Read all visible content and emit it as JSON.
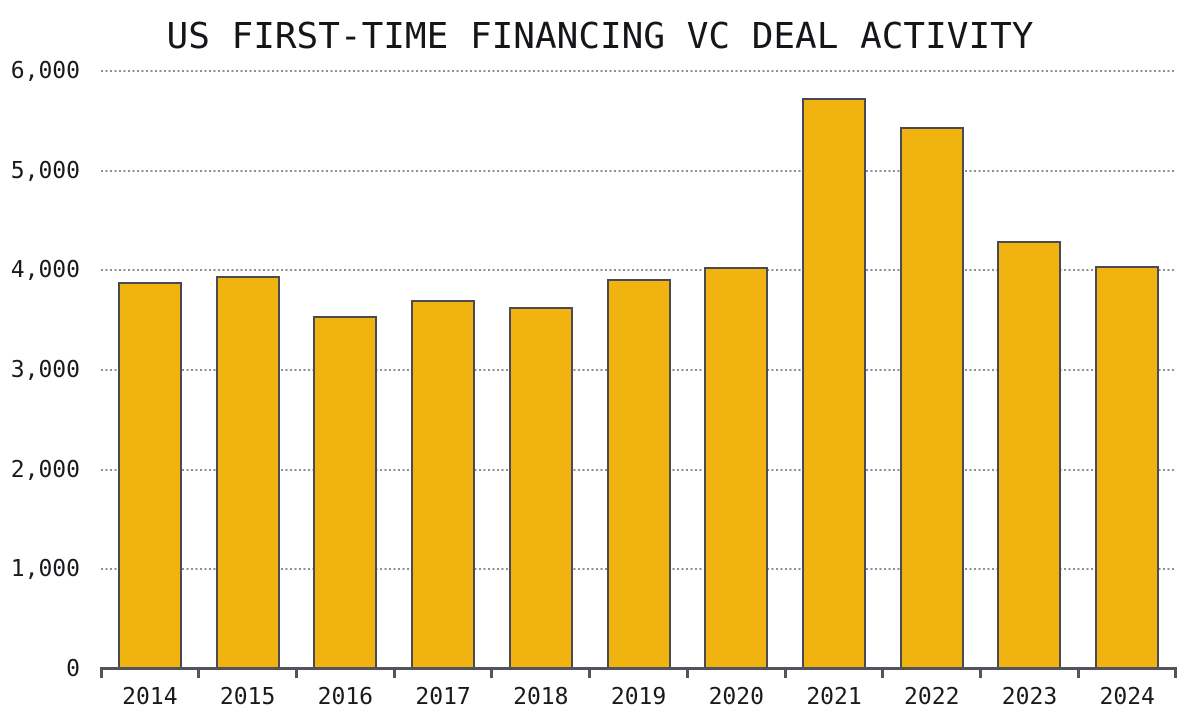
{
  "title": "US FIRST-TIME FINANCING VC DEAL ACTIVITY",
  "colors": {
    "background": "#ffffff",
    "bar_fill": "#f0b310",
    "bar_stroke": "#4a4a54",
    "axis": "#53535c",
    "gridline": "#8e8e99",
    "text": "#1a1a1e"
  },
  "chart_data": {
    "type": "bar",
    "title": "US FIRST-TIME FINANCING VC DEAL ACTIVITY",
    "categories": [
      "2014",
      "2015",
      "2016",
      "2017",
      "2018",
      "2019",
      "2020",
      "2021",
      "2022",
      "2023",
      "2024"
    ],
    "values": [
      3880,
      3940,
      3540,
      3700,
      3630,
      3910,
      4030,
      5730,
      5440,
      4290,
      4045
    ],
    "xlabel": "",
    "ylabel": "",
    "ylim": [
      0,
      6000
    ],
    "yticks": [
      0,
      1000,
      2000,
      3000,
      4000,
      5000,
      6000
    ],
    "ytick_labels": [
      "0",
      "1,000",
      "2,000",
      "3,000",
      "4,000",
      "5,000",
      "6,000"
    ],
    "grid": "horizontal-dotted",
    "legend": "none",
    "bar_color": "#f0b310",
    "bar_border": "#4a4a54"
  }
}
